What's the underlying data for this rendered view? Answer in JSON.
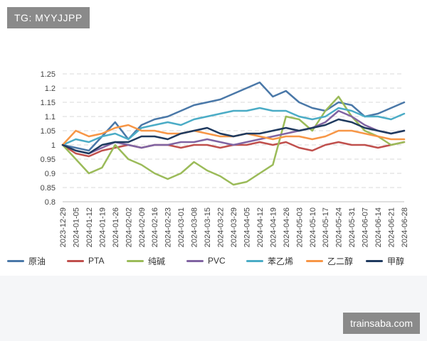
{
  "watermark_top": "TG: MYYJJPP",
  "watermark_bottom": "trainsaba.com",
  "chart_data": {
    "type": "line",
    "title": "",
    "xlabel": "",
    "ylabel": "",
    "ylim": [
      0.8,
      1.25
    ],
    "yticks": [
      "0.8",
      "0.85",
      "0.9",
      "0.95",
      "1",
      "1.05",
      "1.1",
      "1.15",
      "1.2",
      "1.25"
    ],
    "x_ticks": [
      "2023-12-29",
      "2024-01-05",
      "2024-01-12",
      "2024-01-19",
      "2024-01-26",
      "2024-02-02",
      "2024-02-09",
      "2024-02-16",
      "2024-02-23",
      "2024-03-01",
      "2024-03-08",
      "2024-03-15",
      "2024-03-22",
      "2024-03-29",
      "2024-04-05",
      "2024-04-12",
      "2024-04-19",
      "2024-04-26",
      "2024-05-03",
      "2024-05-10",
      "2024-05-17",
      "2024-05-24",
      "2024-05-31",
      "2024-06-07",
      "2024-06-14",
      "2024-06-21",
      "2024-06-28"
    ],
    "x_index": [
      0,
      1,
      2,
      3,
      4,
      5,
      6,
      7,
      8,
      9,
      10,
      11,
      12,
      13,
      14,
      15,
      16,
      17,
      18,
      19,
      20,
      21,
      22,
      23,
      24,
      25,
      26
    ],
    "grid": true,
    "legend_position": "bottom",
    "series": [
      {
        "name": "原油",
        "color": "#4a78a8",
        "values": [
          1.0,
          0.99,
          0.98,
          1.03,
          1.08,
          1.02,
          1.07,
          1.09,
          1.1,
          1.12,
          1.14,
          1.15,
          1.16,
          1.18,
          1.2,
          1.22,
          1.17,
          1.19,
          1.15,
          1.13,
          1.12,
          1.15,
          1.14,
          1.1,
          1.11,
          1.13,
          1.15
        ]
      },
      {
        "name": "PTA",
        "color": "#c0504d",
        "values": [
          1.0,
          0.97,
          0.96,
          0.98,
          0.99,
          1.0,
          0.99,
          1.0,
          1.0,
          0.99,
          1.0,
          1.0,
          0.99,
          1.0,
          1.0,
          1.01,
          1.0,
          1.01,
          0.99,
          0.98,
          1.0,
          1.01,
          1.0,
          1.0,
          0.99,
          1.0,
          1.01
        ]
      },
      {
        "name": "纯碱",
        "color": "#9bbb59",
        "values": [
          1.0,
          0.95,
          0.9,
          0.92,
          1.0,
          0.95,
          0.93,
          0.9,
          0.88,
          0.9,
          0.94,
          0.91,
          0.89,
          0.86,
          0.87,
          0.9,
          0.93,
          1.1,
          1.09,
          1.05,
          1.12,
          1.17,
          1.1,
          1.05,
          1.03,
          1.0,
          1.01
        ]
      },
      {
        "name": "PVC",
        "color": "#8064a2",
        "values": [
          1.0,
          0.98,
          0.97,
          0.99,
          1.01,
          1.0,
          0.99,
          1.0,
          1.0,
          1.01,
          1.01,
          1.02,
          1.01,
          1.0,
          1.01,
          1.02,
          1.03,
          1.04,
          1.05,
          1.06,
          1.08,
          1.12,
          1.1,
          1.07,
          1.05,
          1.04,
          1.05
        ]
      },
      {
        "name": "苯乙烯",
        "color": "#4bacc6",
        "values": [
          1.0,
          1.02,
          1.01,
          1.03,
          1.04,
          1.02,
          1.06,
          1.07,
          1.08,
          1.07,
          1.09,
          1.1,
          1.11,
          1.12,
          1.12,
          1.13,
          1.12,
          1.12,
          1.1,
          1.09,
          1.1,
          1.13,
          1.12,
          1.1,
          1.1,
          1.09,
          1.11
        ]
      },
      {
        "name": "乙二醇",
        "color": "#f79646",
        "values": [
          1.0,
          1.05,
          1.03,
          1.04,
          1.06,
          1.07,
          1.05,
          1.05,
          1.04,
          1.04,
          1.05,
          1.04,
          1.03,
          1.03,
          1.04,
          1.03,
          1.02,
          1.03,
          1.03,
          1.02,
          1.03,
          1.05,
          1.05,
          1.04,
          1.03,
          1.02,
          1.02
        ]
      },
      {
        "name": "甲醇",
        "color": "#1f3a5f",
        "values": [
          1.0,
          0.98,
          0.97,
          1.0,
          1.01,
          1.01,
          1.03,
          1.03,
          1.02,
          1.04,
          1.05,
          1.06,
          1.04,
          1.03,
          1.04,
          1.04,
          1.05,
          1.06,
          1.05,
          1.06,
          1.07,
          1.09,
          1.08,
          1.06,
          1.05,
          1.04,
          1.05
        ]
      }
    ]
  }
}
